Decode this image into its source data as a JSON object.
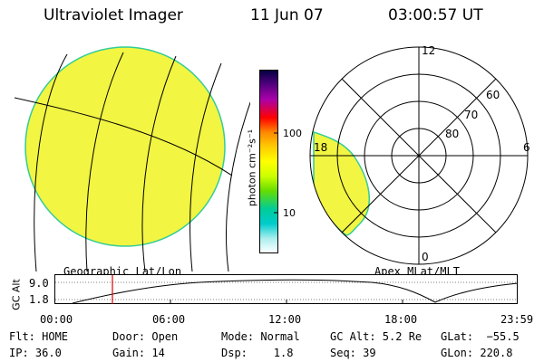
{
  "header": {
    "title": "Ultraviolet Imager",
    "date": "11 Jun 07",
    "time": "03:00:57 UT"
  },
  "geographic_panel": {
    "label": "Geographic Lat/Lon"
  },
  "colorbar": {
    "unit_label": "photon cm⁻²s⁻¹",
    "tick_100": "100",
    "tick_10": "10",
    "colors": [
      "#000040",
      "#550080",
      "#aa00aa",
      "#ff0000",
      "#ff8800",
      "#ffcc00",
      "#ffff00",
      "#ccff00",
      "#66dd00",
      "#00cc99",
      "#00cccc",
      "#aaeeee",
      "#ffffff"
    ]
  },
  "polar_panel": {
    "label": "Apex MLat/MLT",
    "mlt_12": "12",
    "mlt_18": "18",
    "mlt_6": "6",
    "mlt_0": "0",
    "lat_60": "60",
    "lat_70": "70",
    "lat_80": "80"
  },
  "altitude_plot": {
    "ylabel": "GC Alt",
    "y_top": "9.0",
    "y_bottom": "1.8",
    "x_ticks": [
      "00:00",
      "06:00",
      "12:00",
      "18:00",
      "23:59"
    ],
    "current_time_marker": "03:00:57"
  },
  "status": {
    "flt": "Flt: HOME",
    "ip": "IP: 36.0",
    "door": "Door: Open",
    "gain": "Gain: 14",
    "mode": "Mode: Normal",
    "dsp": "Dsp:    1.8",
    "gc_alt": "GC Alt: 5.2 Re",
    "seq": "Seq: 39",
    "glat": "GLat:  −55.5",
    "glon": "GLon: 220.8"
  },
  "image_color": "#f2f542",
  "edge_color": "#33cc99"
}
